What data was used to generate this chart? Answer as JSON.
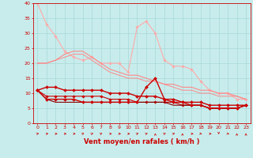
{
  "xlabel": "Vent moyen/en rafales ( km/h )",
  "ylabel": "",
  "background_color": "#c8ecec",
  "grid_color": "#a8d8d8",
  "xlim": [
    -0.5,
    23.5
  ],
  "ylim": [
    0,
    40
  ],
  "yticks": [
    0,
    5,
    10,
    15,
    20,
    25,
    30,
    35,
    40
  ],
  "xticks": [
    0,
    1,
    2,
    3,
    4,
    5,
    6,
    7,
    8,
    9,
    10,
    11,
    12,
    13,
    14,
    15,
    16,
    17,
    18,
    19,
    20,
    21,
    22,
    23
  ],
  "x": [
    0,
    1,
    2,
    3,
    4,
    5,
    6,
    7,
    8,
    9,
    10,
    11,
    12,
    13,
    14,
    15,
    16,
    17,
    18,
    19,
    20,
    21,
    22,
    23
  ],
  "lines": [
    {
      "y": [
        40,
        33,
        29,
        24,
        22,
        21,
        22,
        20,
        20,
        20,
        17,
        32,
        34,
        30,
        21,
        19,
        19,
        18,
        14,
        11,
        10,
        10,
        8,
        8
      ],
      "color": "#ffaaaa",
      "linewidth": 0.8,
      "marker": "D",
      "markersize": 1.8,
      "zorder": 2
    },
    {
      "y": [
        20,
        20,
        21,
        23,
        24,
        24,
        22,
        20,
        18,
        17,
        16,
        16,
        15,
        14,
        13,
        13,
        12,
        12,
        11,
        11,
        10,
        10,
        9,
        8
      ],
      "color": "#ff8888",
      "linewidth": 0.8,
      "marker": null,
      "markersize": 0,
      "zorder": 2
    },
    {
      "y": [
        20,
        20,
        21,
        22,
        23,
        23,
        21,
        19,
        17,
        16,
        15,
        15,
        14,
        14,
        13,
        12,
        11,
        11,
        10,
        10,
        9,
        9,
        9,
        8
      ],
      "color": "#ff8888",
      "linewidth": 0.7,
      "marker": null,
      "markersize": 0,
      "zorder": 2
    },
    {
      "y": [
        11,
        12,
        12,
        11,
        11,
        11,
        11,
        11,
        10,
        10,
        10,
        9,
        9,
        9,
        8,
        8,
        7,
        7,
        7,
        6,
        6,
        6,
        6,
        6
      ],
      "color": "#cc0000",
      "linewidth": 1.0,
      "marker": "D",
      "markersize": 2.0,
      "zorder": 3
    },
    {
      "y": [
        11,
        9,
        9,
        9,
        9,
        9,
        9,
        9,
        8,
        8,
        8,
        7,
        7,
        7,
        7,
        7,
        6,
        6,
        6,
        5,
        5,
        5,
        5,
        6
      ],
      "color": "#cc0000",
      "linewidth": 0.8,
      "marker": "D",
      "markersize": 1.8,
      "zorder": 3
    },
    {
      "y": [
        11,
        8,
        8,
        8,
        8,
        7,
        7,
        7,
        7,
        7,
        7,
        7,
        12,
        15,
        8,
        7,
        7,
        6,
        6,
        5,
        5,
        5,
        5,
        6
      ],
      "color": "#cc0000",
      "linewidth": 1.0,
      "marker": "D",
      "markersize": 2.0,
      "zorder": 4
    },
    {
      "y": [
        11,
        8,
        7,
        7,
        7,
        7,
        7,
        7,
        7,
        7,
        7,
        7,
        7,
        7,
        7,
        6,
        6,
        6,
        6,
        5,
        5,
        5,
        5,
        6
      ],
      "color": "#880000",
      "linewidth": 0.8,
      "marker": null,
      "markersize": 0,
      "zorder": 3
    }
  ],
  "arrow_angles": [
    45,
    90,
    90,
    90,
    90,
    45,
    45,
    45,
    90,
    90,
    90,
    45,
    45,
    0,
    45,
    45,
    0,
    90,
    135,
    90,
    180,
    135,
    0,
    0
  ],
  "axis_fontsize": 5.5,
  "tick_fontsize": 4.5,
  "xlabel_fontsize": 6.0
}
